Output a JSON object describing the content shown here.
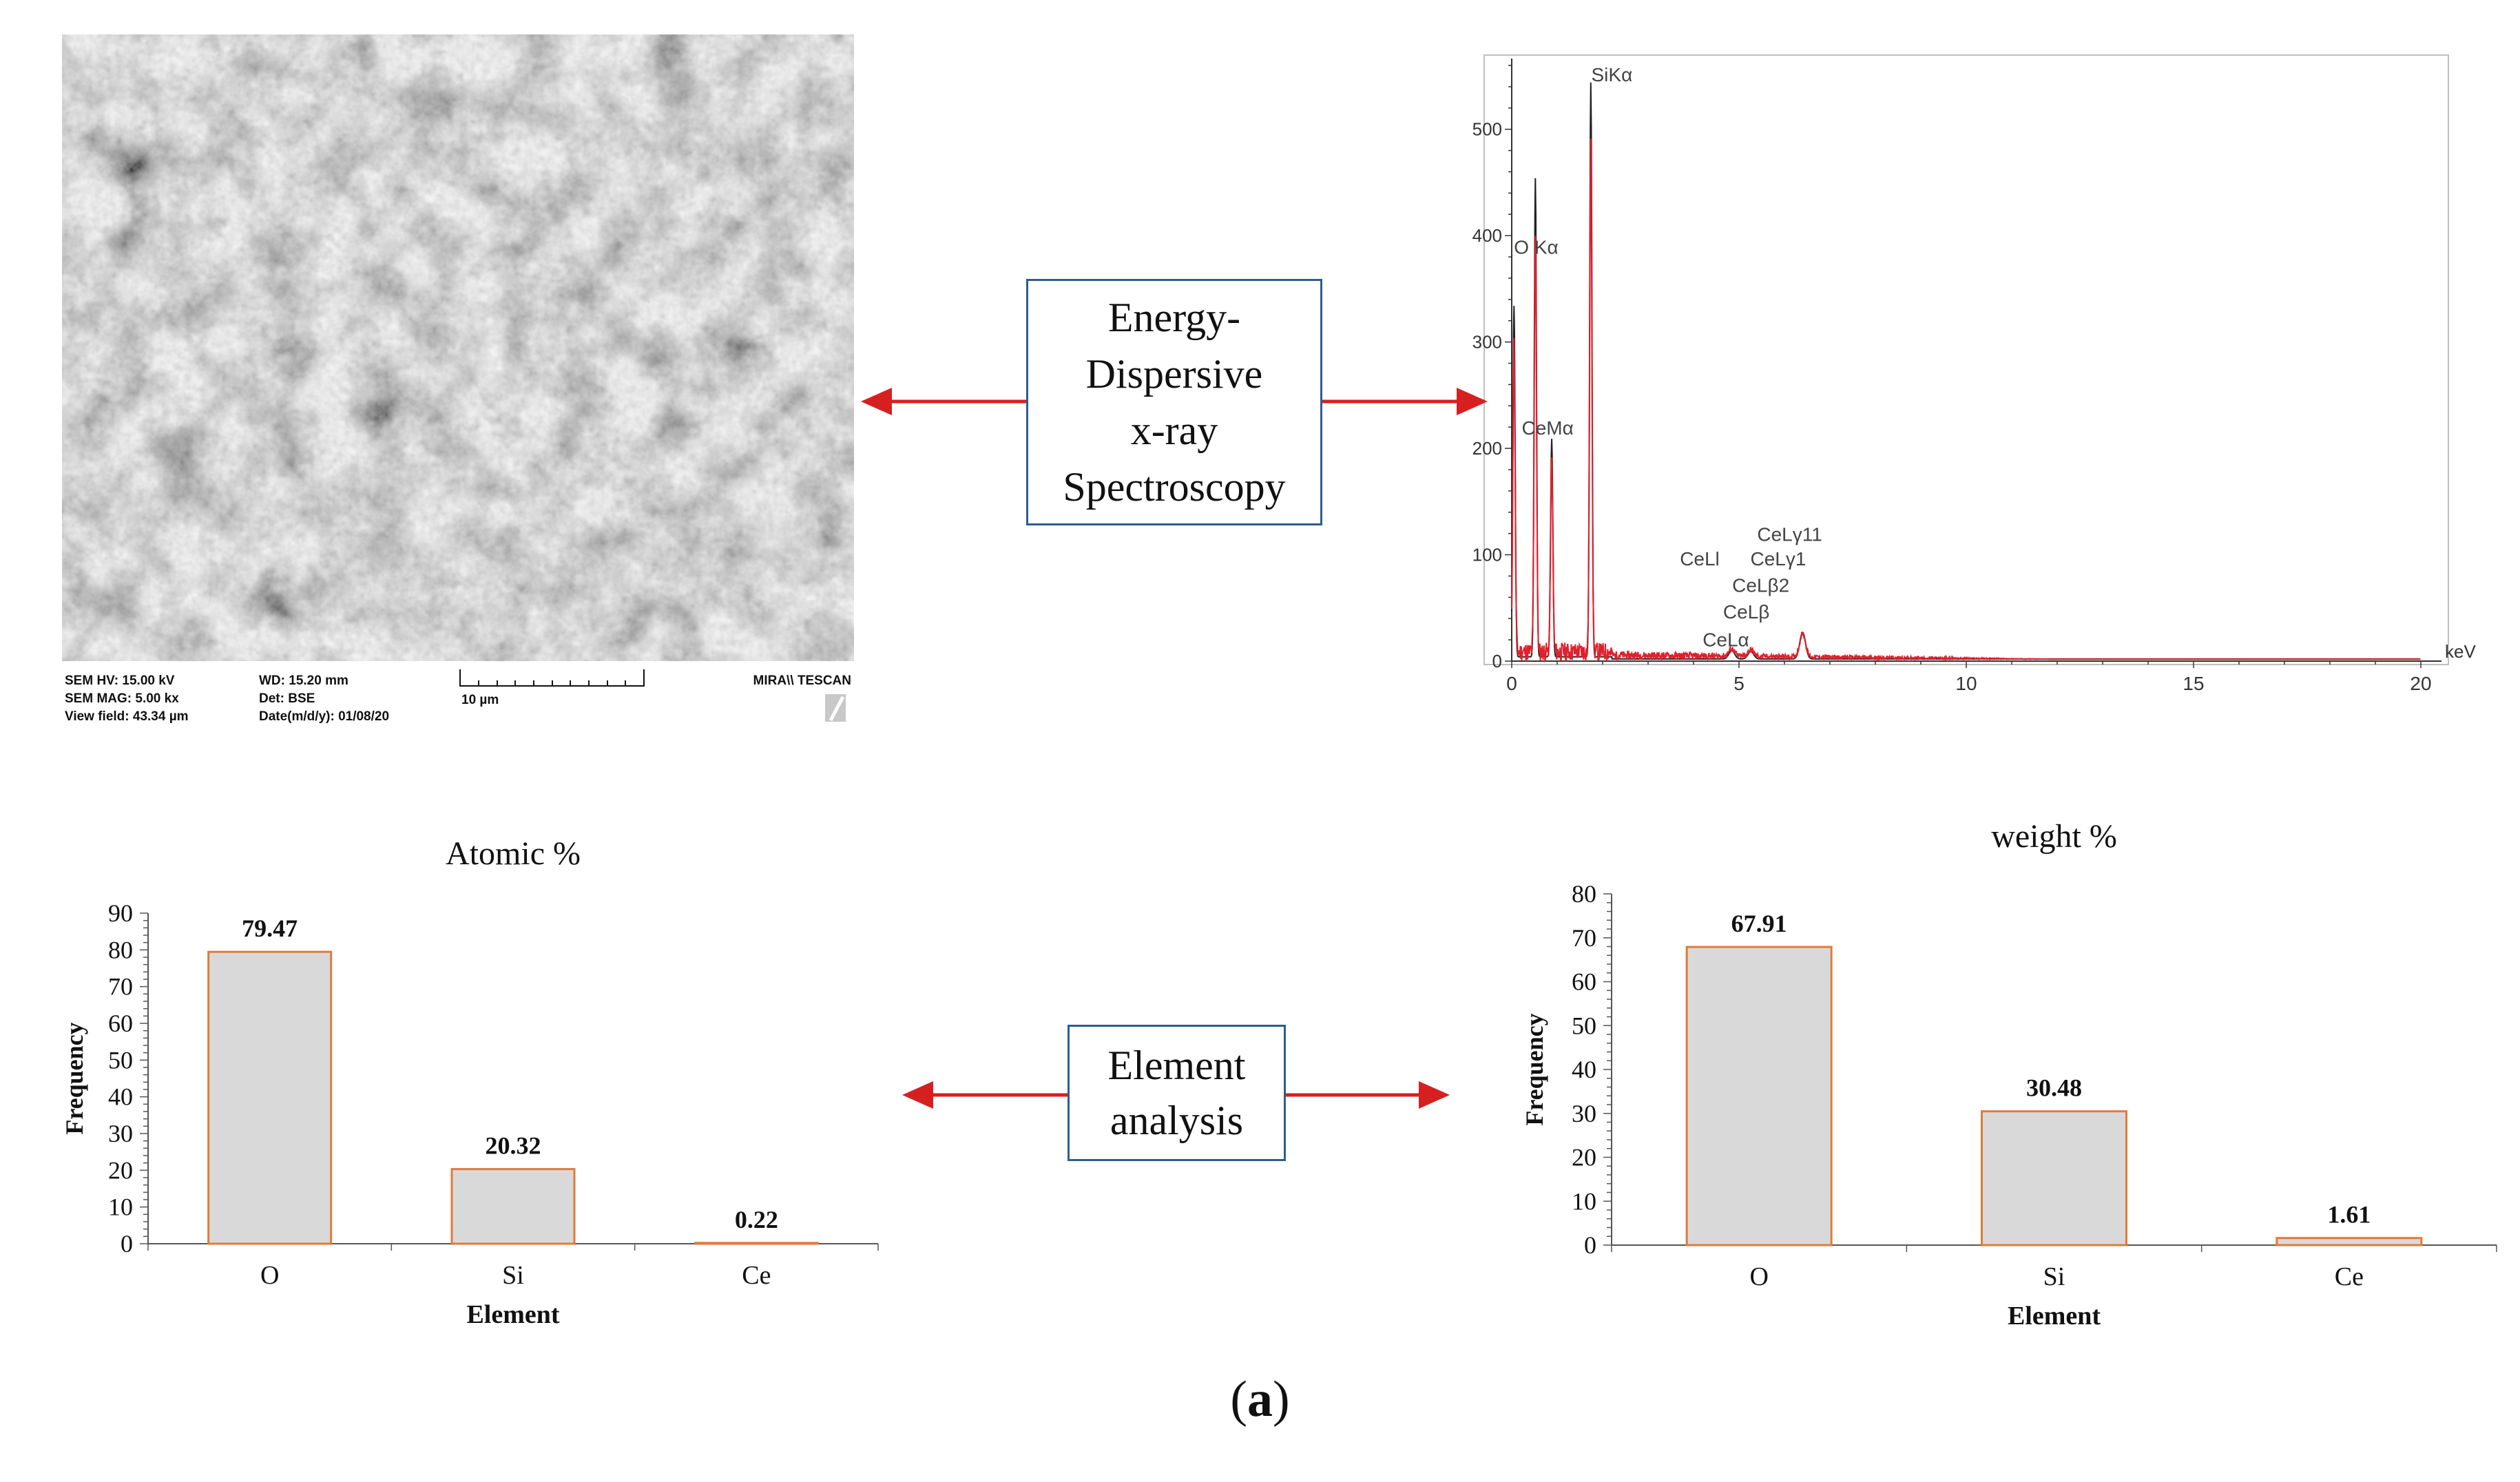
{
  "sem": {
    "labels": {
      "hv": "SEM HV: 15.00 kV",
      "mag": "SEM MAG: 5.00 kx",
      "view": "View field: 43.34 µm",
      "wd": "WD: 15.20 mm",
      "det": "Det: BSE",
      "date": "Date(m/d/y): 01/08/20",
      "scale": "10 µm",
      "brand": "MIRA\\\\ TESCAN"
    }
  },
  "edx_box": {
    "lines": [
      "Energy-",
      "Dispersive",
      "x-ray",
      "Spectroscopy"
    ]
  },
  "element_box": {
    "lines": [
      "Element",
      "analysis"
    ]
  },
  "caption": {
    "open": "(",
    "letter": "a",
    "close": ")"
  },
  "colors": {
    "bar_fill": "#d9d9d9",
    "bar_stroke": "#e07b39",
    "arrow": "#d62020",
    "box_border": "#2e5d8a",
    "spectrum_red": "#e0202c",
    "spectrum_black": "#222222"
  },
  "chart_data": [
    {
      "type": "line",
      "name": "spectrum",
      "xlabel": "keV",
      "xlim": [
        0,
        20
      ],
      "ylim": [
        0,
        560
      ],
      "x_ticks": [
        "0",
        "5",
        "10",
        "15",
        "20"
      ],
      "y_ticks": [
        "0",
        "100",
        "200",
        "300",
        "400",
        "500"
      ],
      "peaks": [
        {
          "x": 0.05,
          "y": 330
        },
        {
          "x": 0.52,
          "y": 450
        },
        {
          "x": 0.88,
          "y": 205
        },
        {
          "x": 1.74,
          "y": 540
        },
        {
          "x": 4.84,
          "y": 8
        },
        {
          "x": 5.26,
          "y": 7
        },
        {
          "x": 6.4,
          "y": 25
        }
      ],
      "annotations": [
        {
          "text": "SiKα",
          "x": 1.75,
          "y": 545
        },
        {
          "text": "O Kα",
          "x": 0.05,
          "y": 383
        },
        {
          "text": "CeMα",
          "x": 0.22,
          "y": 213
        },
        {
          "text": "CeLγ11",
          "x": 5.4,
          "y": 113
        },
        {
          "text": "CeLl",
          "x": 3.7,
          "y": 90
        },
        {
          "text": "CeLγ1",
          "x": 5.25,
          "y": 90
        },
        {
          "text": "CeLβ2",
          "x": 4.85,
          "y": 65
        },
        {
          "text": "CeLβ",
          "x": 4.65,
          "y": 40
        },
        {
          "text": "CeLα",
          "x": 4.2,
          "y": 14
        }
      ]
    },
    {
      "type": "bar",
      "name": "atomic",
      "title": "Atomic %",
      "xlabel": "Element",
      "ylabel": "Frequency",
      "categories": [
        "O",
        "Si",
        "Ce"
      ],
      "values": [
        79.47,
        20.32,
        0.22
      ],
      "value_labels": [
        "79.47",
        "20.32",
        "0.22"
      ],
      "ylim": [
        0,
        90
      ],
      "y_ticks": [
        "0",
        "10",
        "20",
        "30",
        "40",
        "50",
        "60",
        "70",
        "80",
        "90"
      ]
    },
    {
      "type": "bar",
      "name": "weight",
      "title": "weight %",
      "xlabel": "Element",
      "ylabel": "Frequency",
      "categories": [
        "O",
        "Si",
        "Ce"
      ],
      "values": [
        67.91,
        30.48,
        1.61
      ],
      "value_labels": [
        "67.91",
        "30.48",
        "1.61"
      ],
      "ylim": [
        0,
        80
      ],
      "y_ticks": [
        "0",
        "10",
        "20",
        "30",
        "40",
        "50",
        "60",
        "70",
        "80"
      ]
    }
  ]
}
